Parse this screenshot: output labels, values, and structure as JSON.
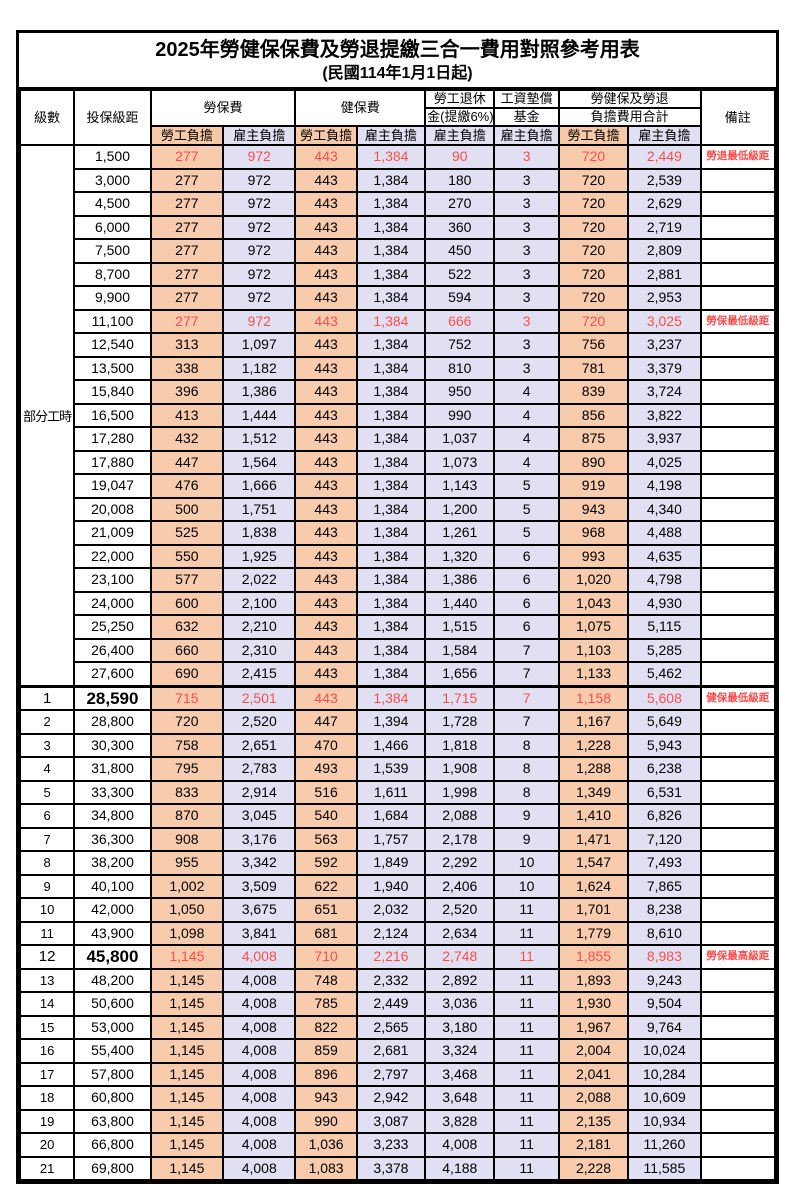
{
  "title": {
    "main": "2025年勞健保保費及勞退提繳三合一費用對照參考用表",
    "sub": "(民國114年1月1日起)"
  },
  "header": {
    "col_level": "級數",
    "col_bracket": "投保級距",
    "group_labor_insurance": "勞保費",
    "group_health_insurance": "健保費",
    "group_pension_line1": "勞工退休",
    "group_pension_line2": "金(提繳6%)",
    "group_wage_fund_line1": "工資墊償",
    "group_wage_fund_line2": "基金",
    "group_total_line1": "勞健保及勞退",
    "group_total_line2": "負擔費用合計",
    "col_remark": "備註",
    "sub_employee": "勞工負擔",
    "sub_employer": "雇主負擔"
  },
  "part_time_label": "部分工時",
  "part_time_rowspan": 23,
  "colors": {
    "employee_bg": "#F8CBAD",
    "employer_bg": "#E1E0F2",
    "highlight_text": "#FF4D4D",
    "border": "#000000"
  },
  "value_col_types": [
    "emp",
    "er",
    "emp",
    "er",
    "er",
    "er",
    "emp",
    "er"
  ],
  "rows": [
    {
      "level": "",
      "bracket": "1,500",
      "values": [
        "277",
        "972",
        "443",
        "1,384",
        "90",
        "3",
        "720",
        "2,449"
      ],
      "remark": "勞退最低級距",
      "red": true,
      "big": false
    },
    {
      "level": "",
      "bracket": "3,000",
      "values": [
        "277",
        "972",
        "443",
        "1,384",
        "180",
        "3",
        "720",
        "2,539"
      ],
      "remark": "",
      "red": false,
      "big": false
    },
    {
      "level": "",
      "bracket": "4,500",
      "values": [
        "277",
        "972",
        "443",
        "1,384",
        "270",
        "3",
        "720",
        "2,629"
      ],
      "remark": "",
      "red": false,
      "big": false
    },
    {
      "level": "",
      "bracket": "6,000",
      "values": [
        "277",
        "972",
        "443",
        "1,384",
        "360",
        "3",
        "720",
        "2,719"
      ],
      "remark": "",
      "red": false,
      "big": false
    },
    {
      "level": "",
      "bracket": "7,500",
      "values": [
        "277",
        "972",
        "443",
        "1,384",
        "450",
        "3",
        "720",
        "2,809"
      ],
      "remark": "",
      "red": false,
      "big": false
    },
    {
      "level": "",
      "bracket": "8,700",
      "values": [
        "277",
        "972",
        "443",
        "1,384",
        "522",
        "3",
        "720",
        "2,881"
      ],
      "remark": "",
      "red": false,
      "big": false
    },
    {
      "level": "",
      "bracket": "9,900",
      "values": [
        "277",
        "972",
        "443",
        "1,384",
        "594",
        "3",
        "720",
        "2,953"
      ],
      "remark": "",
      "red": false,
      "big": false
    },
    {
      "level": "",
      "bracket": "11,100",
      "values": [
        "277",
        "972",
        "443",
        "1,384",
        "666",
        "3",
        "720",
        "3,025"
      ],
      "remark": "勞保最低級距",
      "red": true,
      "big": false
    },
    {
      "level": "",
      "bracket": "12,540",
      "values": [
        "313",
        "1,097",
        "443",
        "1,384",
        "752",
        "3",
        "756",
        "3,237"
      ],
      "remark": "",
      "red": false,
      "big": false
    },
    {
      "level": "",
      "bracket": "13,500",
      "values": [
        "338",
        "1,182",
        "443",
        "1,384",
        "810",
        "3",
        "781",
        "3,379"
      ],
      "remark": "",
      "red": false,
      "big": false
    },
    {
      "level": "",
      "bracket": "15,840",
      "values": [
        "396",
        "1,386",
        "443",
        "1,384",
        "950",
        "4",
        "839",
        "3,724"
      ],
      "remark": "",
      "red": false,
      "big": false
    },
    {
      "level": "",
      "bracket": "16,500",
      "values": [
        "413",
        "1,444",
        "443",
        "1,384",
        "990",
        "4",
        "856",
        "3,822"
      ],
      "remark": "",
      "red": false,
      "big": false
    },
    {
      "level": "",
      "bracket": "17,280",
      "values": [
        "432",
        "1,512",
        "443",
        "1,384",
        "1,037",
        "4",
        "875",
        "3,937"
      ],
      "remark": "",
      "red": false,
      "big": false
    },
    {
      "level": "",
      "bracket": "17,880",
      "values": [
        "447",
        "1,564",
        "443",
        "1,384",
        "1,073",
        "4",
        "890",
        "4,025"
      ],
      "remark": "",
      "red": false,
      "big": false
    },
    {
      "level": "",
      "bracket": "19,047",
      "values": [
        "476",
        "1,666",
        "443",
        "1,384",
        "1,143",
        "5",
        "919",
        "4,198"
      ],
      "remark": "",
      "red": false,
      "big": false
    },
    {
      "level": "",
      "bracket": "20,008",
      "values": [
        "500",
        "1,751",
        "443",
        "1,384",
        "1,200",
        "5",
        "943",
        "4,340"
      ],
      "remark": "",
      "red": false,
      "big": false
    },
    {
      "level": "",
      "bracket": "21,009",
      "values": [
        "525",
        "1,838",
        "443",
        "1,384",
        "1,261",
        "5",
        "968",
        "4,488"
      ],
      "remark": "",
      "red": false,
      "big": false
    },
    {
      "level": "",
      "bracket": "22,000",
      "values": [
        "550",
        "1,925",
        "443",
        "1,384",
        "1,320",
        "6",
        "993",
        "4,635"
      ],
      "remark": "",
      "red": false,
      "big": false
    },
    {
      "level": "",
      "bracket": "23,100",
      "values": [
        "577",
        "2,022",
        "443",
        "1,384",
        "1,386",
        "6",
        "1,020",
        "4,798"
      ],
      "remark": "",
      "red": false,
      "big": false
    },
    {
      "level": "",
      "bracket": "24,000",
      "values": [
        "600",
        "2,100",
        "443",
        "1,384",
        "1,440",
        "6",
        "1,043",
        "4,930"
      ],
      "remark": "",
      "red": false,
      "big": false
    },
    {
      "level": "",
      "bracket": "25,250",
      "values": [
        "632",
        "2,210",
        "443",
        "1,384",
        "1,515",
        "6",
        "1,075",
        "5,115"
      ],
      "remark": "",
      "red": false,
      "big": false
    },
    {
      "level": "",
      "bracket": "26,400",
      "values": [
        "660",
        "2,310",
        "443",
        "1,384",
        "1,584",
        "7",
        "1,103",
        "5,285"
      ],
      "remark": "",
      "red": false,
      "big": false
    },
    {
      "level": "",
      "bracket": "27,600",
      "values": [
        "690",
        "2,415",
        "443",
        "1,384",
        "1,656",
        "7",
        "1,133",
        "5,462"
      ],
      "remark": "",
      "red": false,
      "big": false
    },
    {
      "level": "1",
      "bracket": "28,590",
      "values": [
        "715",
        "2,501",
        "443",
        "1,384",
        "1,715",
        "7",
        "1,158",
        "5,608"
      ],
      "remark": "健保最低級距",
      "red": true,
      "big": true
    },
    {
      "level": "2",
      "bracket": "28,800",
      "values": [
        "720",
        "2,520",
        "447",
        "1,394",
        "1,728",
        "7",
        "1,167",
        "5,649"
      ],
      "remark": "",
      "red": false,
      "big": false
    },
    {
      "level": "3",
      "bracket": "30,300",
      "values": [
        "758",
        "2,651",
        "470",
        "1,466",
        "1,818",
        "8",
        "1,228",
        "5,943"
      ],
      "remark": "",
      "red": false,
      "big": false
    },
    {
      "level": "4",
      "bracket": "31,800",
      "values": [
        "795",
        "2,783",
        "493",
        "1,539",
        "1,908",
        "8",
        "1,288",
        "6,238"
      ],
      "remark": "",
      "red": false,
      "big": false
    },
    {
      "level": "5",
      "bracket": "33,300",
      "values": [
        "833",
        "2,914",
        "516",
        "1,611",
        "1,998",
        "8",
        "1,349",
        "6,531"
      ],
      "remark": "",
      "red": false,
      "big": false
    },
    {
      "level": "6",
      "bracket": "34,800",
      "values": [
        "870",
        "3,045",
        "540",
        "1,684",
        "2,088",
        "9",
        "1,410",
        "6,826"
      ],
      "remark": "",
      "red": false,
      "big": false
    },
    {
      "level": "7",
      "bracket": "36,300",
      "values": [
        "908",
        "3,176",
        "563",
        "1,757",
        "2,178",
        "9",
        "1,471",
        "7,120"
      ],
      "remark": "",
      "red": false,
      "big": false
    },
    {
      "level": "8",
      "bracket": "38,200",
      "values": [
        "955",
        "3,342",
        "592",
        "1,849",
        "2,292",
        "10",
        "1,547",
        "7,493"
      ],
      "remark": "",
      "red": false,
      "big": false
    },
    {
      "level": "9",
      "bracket": "40,100",
      "values": [
        "1,002",
        "3,509",
        "622",
        "1,940",
        "2,406",
        "10",
        "1,624",
        "7,865"
      ],
      "remark": "",
      "red": false,
      "big": false
    },
    {
      "level": "10",
      "bracket": "42,000",
      "values": [
        "1,050",
        "3,675",
        "651",
        "2,032",
        "2,520",
        "11",
        "1,701",
        "8,238"
      ],
      "remark": "",
      "red": false,
      "big": false
    },
    {
      "level": "11",
      "bracket": "43,900",
      "values": [
        "1,098",
        "3,841",
        "681",
        "2,124",
        "2,634",
        "11",
        "1,779",
        "8,610"
      ],
      "remark": "",
      "red": false,
      "big": false
    },
    {
      "level": "12",
      "bracket": "45,800",
      "values": [
        "1,145",
        "4,008",
        "710",
        "2,216",
        "2,748",
        "11",
        "1,855",
        "8,983"
      ],
      "remark": "勞保最高級距",
      "red": true,
      "big": true
    },
    {
      "level": "13",
      "bracket": "48,200",
      "values": [
        "1,145",
        "4,008",
        "748",
        "2,332",
        "2,892",
        "11",
        "1,893",
        "9,243"
      ],
      "remark": "",
      "red": false,
      "big": false
    },
    {
      "level": "14",
      "bracket": "50,600",
      "values": [
        "1,145",
        "4,008",
        "785",
        "2,449",
        "3,036",
        "11",
        "1,930",
        "9,504"
      ],
      "remark": "",
      "red": false,
      "big": false
    },
    {
      "level": "15",
      "bracket": "53,000",
      "values": [
        "1,145",
        "4,008",
        "822",
        "2,565",
        "3,180",
        "11",
        "1,967",
        "9,764"
      ],
      "remark": "",
      "red": false,
      "big": false
    },
    {
      "level": "16",
      "bracket": "55,400",
      "values": [
        "1,145",
        "4,008",
        "859",
        "2,681",
        "3,324",
        "11",
        "2,004",
        "10,024"
      ],
      "remark": "",
      "red": false,
      "big": false
    },
    {
      "level": "17",
      "bracket": "57,800",
      "values": [
        "1,145",
        "4,008",
        "896",
        "2,797",
        "3,468",
        "11",
        "2,041",
        "10,284"
      ],
      "remark": "",
      "red": false,
      "big": false
    },
    {
      "level": "18",
      "bracket": "60,800",
      "values": [
        "1,145",
        "4,008",
        "943",
        "2,942",
        "3,648",
        "11",
        "2,088",
        "10,609"
      ],
      "remark": "",
      "red": false,
      "big": false
    },
    {
      "level": "19",
      "bracket": "63,800",
      "values": [
        "1,145",
        "4,008",
        "990",
        "3,087",
        "3,828",
        "11",
        "2,135",
        "10,934"
      ],
      "remark": "",
      "red": false,
      "big": false
    },
    {
      "level": "20",
      "bracket": "66,800",
      "values": [
        "1,145",
        "4,008",
        "1,036",
        "3,233",
        "4,008",
        "11",
        "2,181",
        "11,260"
      ],
      "remark": "",
      "red": false,
      "big": false
    },
    {
      "level": "21",
      "bracket": "69,800",
      "values": [
        "1,145",
        "4,008",
        "1,083",
        "3,378",
        "4,188",
        "11",
        "2,228",
        "11,585"
      ],
      "remark": "",
      "red": false,
      "big": false
    }
  ]
}
